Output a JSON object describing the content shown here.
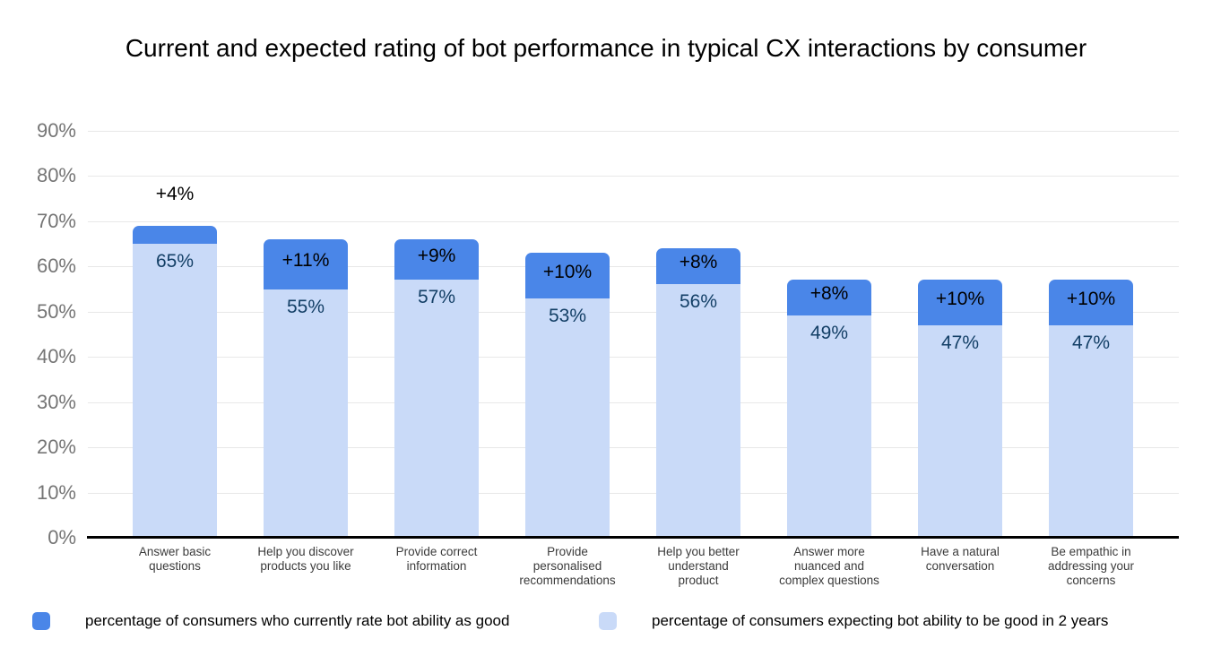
{
  "title": "Current and expected rating of bot performance in typical CX interactions by consumer",
  "colors": {
    "current_series": "#4a86e8",
    "expected_series": "#c9daf8",
    "value_label": "#133f66",
    "delta_label": "#000000",
    "axis_tick_label": "#757575",
    "gridline": "#e8e8e8",
    "baseline": "#000000",
    "category_label": "#3b3b3b",
    "background": "#ffffff"
  },
  "y_axis": {
    "ticks": [
      "90%",
      "80%",
      "70%",
      "60%",
      "50%",
      "40%",
      "30%",
      "20%",
      "10%",
      "0%"
    ]
  },
  "bars": [
    {
      "category": "Answer basic questions",
      "expected": 65,
      "expected_label": "65%",
      "delta": 4,
      "delta_label": "+4%",
      "delta_outside": true
    },
    {
      "category": "Help you discover products you like",
      "expected": 55,
      "expected_label": "55%",
      "delta": 11,
      "delta_label": "+11%",
      "delta_outside": false
    },
    {
      "category": "Provide correct information",
      "expected": 57,
      "expected_label": "57%",
      "delta": 9,
      "delta_label": "+9%",
      "delta_outside": false
    },
    {
      "category": "Provide personalised recommendations",
      "expected": 53,
      "expected_label": "53%",
      "delta": 10,
      "delta_label": "+10%",
      "delta_outside": false
    },
    {
      "category": "Help you better understand product",
      "expected": 56,
      "expected_label": "56%",
      "delta": 8,
      "delta_label": "+8%",
      "delta_outside": false
    },
    {
      "category": "Answer more nuanced and complex questions",
      "expected": 49,
      "expected_label": "49%",
      "delta": 8,
      "delta_label": "+8%",
      "delta_outside": false
    },
    {
      "category": "Have a natural conversation",
      "expected": 47,
      "expected_label": "47%",
      "delta": 10,
      "delta_label": "+10%",
      "delta_outside": false
    },
    {
      "category": "Be empathic in addressing your concerns",
      "expected": 47,
      "expected_label": "47%",
      "delta": 10,
      "delta_label": "+10%",
      "delta_outside": false
    }
  ],
  "legend": [
    {
      "label": "percentage of consumers who currently rate bot ability as good",
      "color": "#4a86e8"
    },
    {
      "label": "percentage of consumers expecting bot ability to be good in 2 years",
      "color": "#c9daf8"
    }
  ],
  "chart_data": {
    "type": "bar",
    "stacked": true,
    "title": "Current and expected rating of bot performance in typical CX interactions by consumer",
    "categories": [
      "Answer basic questions",
      "Help you discover products you like",
      "Provide correct information",
      "Provide personalised recommendations",
      "Help you better understand product",
      "Answer more nuanced and complex questions",
      "Have a natural conversation",
      "Be empathic in addressing your concerns"
    ],
    "series": [
      {
        "name": "percentage of consumers expecting bot ability to be good in 2 years",
        "color": "#c9daf8",
        "segment": "bottom",
        "values": [
          65,
          55,
          57,
          53,
          56,
          49,
          47,
          47
        ],
        "value_labels": [
          "65%",
          "55%",
          "57%",
          "53%",
          "56%",
          "49%",
          "47%",
          "47%"
        ]
      },
      {
        "name": "percentage of consumers who currently rate bot ability as good",
        "color": "#4a86e8",
        "segment": "top",
        "values": [
          4,
          11,
          9,
          10,
          8,
          8,
          10,
          10
        ],
        "value_labels": [
          "+4%",
          "+11%",
          "+9%",
          "+10%",
          "+8%",
          "+8%",
          "+10%",
          "+10%"
        ]
      }
    ],
    "bar_totals": [
      69,
      66,
      66,
      63,
      64,
      57,
      57,
      57
    ],
    "xlabel": "",
    "ylabel": "",
    "ylim": [
      0,
      90
    ],
    "ytick_interval": 10,
    "ytick_format": "percent",
    "grid": true,
    "legend_position": "bottom"
  }
}
